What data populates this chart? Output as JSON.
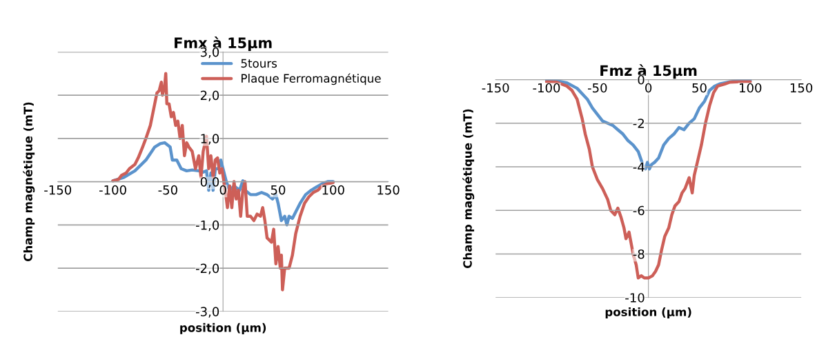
{
  "chart_data": [
    {
      "type": "line",
      "title": "Fmx à 15µm",
      "xlabel": "position (µm)",
      "ylabel": "Champ magnétique (mT)",
      "xlim": [
        -150,
        150
      ],
      "xticks": [
        -150,
        -100,
        -50,
        0,
        50,
        100,
        150
      ],
      "ylim": [
        -3,
        3
      ],
      "yticks": [
        {
          "value": -3,
          "label": "-3,0"
        },
        {
          "value": -2,
          "label": "-2,0"
        },
        {
          "value": -1,
          "label": "-1,0"
        },
        {
          "value": 0,
          "label": "0,0"
        },
        {
          "value": 1,
          "label": "1,0"
        },
        {
          "value": 2,
          "label": "2,0"
        },
        {
          "value": 3,
          "label": "3,0"
        }
      ],
      "grid": "y",
      "legend": "top right",
      "marker": "none",
      "line_style": "solid",
      "series": [
        {
          "name": "5tours",
          "color": "#5b93cc",
          "x": [
            -100,
            -90,
            -80,
            -70,
            -62,
            -57,
            -53,
            -48,
            -46,
            -42,
            -38,
            -33,
            -28,
            -22,
            -18,
            -15,
            -13,
            -11,
            -9,
            -7,
            -4,
            -2,
            0,
            3,
            6,
            10,
            15,
            18,
            20,
            25,
            30,
            35,
            40,
            45,
            48,
            50,
            53,
            56,
            58,
            60,
            63,
            66,
            70,
            75,
            80,
            85,
            90,
            95,
            100
          ],
          "values": [
            0.02,
            0.1,
            0.25,
            0.5,
            0.8,
            0.88,
            0.9,
            0.8,
            0.5,
            0.5,
            0.3,
            0.25,
            0.27,
            0.25,
            0.22,
            0.25,
            -0.2,
            0.2,
            -0.2,
            0.3,
            0.3,
            0.5,
            0.3,
            0,
            -0.2,
            -0.1,
            -0.2,
            0.02,
            -0.2,
            -0.3,
            -0.3,
            -0.25,
            -0.3,
            -0.4,
            -0.3,
            -0.5,
            -0.9,
            -0.8,
            -1.0,
            -0.8,
            -0.85,
            -0.7,
            -0.5,
            -0.3,
            -0.2,
            -0.12,
            -0.05,
            0,
            0
          ]
        },
        {
          "name": "Plaque Ferromagnétique",
          "color": "#cd5f58",
          "x": [
            -100,
            -95,
            -92,
            -88,
            -85,
            -80,
            -77,
            -73,
            -70,
            -66,
            -62,
            -60,
            -58,
            -56,
            -55,
            -53,
            -52,
            -51,
            -49,
            -47,
            -45,
            -43,
            -41,
            -39,
            -37,
            -35,
            -33,
            -31,
            -28,
            -25,
            -22,
            -20,
            -18,
            -15,
            -13,
            -11,
            -9,
            -7,
            -5,
            -3,
            -1,
            2,
            4,
            6,
            8,
            10,
            12,
            14,
            16,
            18,
            20,
            22,
            25,
            28,
            31,
            34,
            36,
            38,
            40,
            44,
            46,
            48,
            50,
            52,
            53,
            54,
            56,
            60,
            63,
            66,
            70,
            74,
            78,
            82,
            86,
            90,
            95,
            100
          ],
          "values": [
            0.02,
            0.05,
            0.15,
            0.2,
            0.3,
            0.4,
            0.55,
            0.8,
            1.0,
            1.3,
            1.8,
            2.05,
            2.1,
            2.3,
            2.0,
            2.2,
            2.5,
            1.8,
            1.8,
            1.5,
            1.6,
            1.3,
            1.4,
            1.0,
            1.3,
            0.6,
            0.9,
            0.8,
            0.7,
            0.3,
            0.6,
            0.1,
            0.7,
            1.05,
            0.3,
            0.6,
            0.1,
            0.5,
            0.55,
            0.2,
            0.3,
            -0.2,
            -0.6,
            -0.1,
            -0.6,
            0,
            -0.4,
            -0.2,
            -0.8,
            -0.2,
            0,
            -0.8,
            -0.8,
            -0.9,
            -0.75,
            -0.8,
            -0.6,
            -0.9,
            -1.3,
            -1.4,
            -1.1,
            -1.9,
            -1.5,
            -2.0,
            -1.7,
            -2.5,
            -2.0,
            -2.0,
            -1.7,
            -1.2,
            -0.8,
            -0.5,
            -0.35,
            -0.25,
            -0.2,
            -0.1,
            -0.05,
            -0.02
          ]
        }
      ]
    },
    {
      "type": "line",
      "title": "Fmz à 15µm",
      "xlabel": "position (µm)",
      "ylabel": "Champ magnétique (mT)",
      "xlim": [
        -150,
        150
      ],
      "xticks": [
        -150,
        -100,
        -50,
        0,
        50,
        100,
        150
      ],
      "ylim": [
        -10,
        0
      ],
      "yticks": [
        -10,
        -8,
        -6,
        -4,
        -2,
        0
      ],
      "grid": "y",
      "marker": "none",
      "line_style": "solid",
      "series": [
        {
          "color": "#5b93cc",
          "x": [
            -100,
            -90,
            -80,
            -70,
            -60,
            -55,
            -50,
            -45,
            -40,
            -35,
            -30,
            -25,
            -20,
            -15,
            -10,
            -7,
            -5,
            -3,
            -1,
            1,
            3,
            6,
            10,
            15,
            20,
            25,
            30,
            35,
            40,
            45,
            50,
            55,
            60,
            65,
            70,
            80,
            90,
            100
          ],
          "values": [
            -0.05,
            -0.06,
            -0.15,
            -0.4,
            -0.9,
            -1.3,
            -1.6,
            -1.9,
            -2.0,
            -2.1,
            -2.3,
            -2.5,
            -2.8,
            -3.0,
            -3.3,
            -3.7,
            -4.0,
            -4.1,
            -3.8,
            -4.1,
            -3.9,
            -3.8,
            -3.6,
            -3.0,
            -2.7,
            -2.5,
            -2.2,
            -2.3,
            -2.0,
            -1.8,
            -1.3,
            -1.0,
            -0.5,
            -0.3,
            -0.2,
            -0.1,
            -0.05,
            -0.05
          ]
        },
        {
          "color": "#cd5f58",
          "x": [
            -100,
            -90,
            -80,
            -75,
            -70,
            -65,
            -62,
            -58,
            -55,
            -50,
            -45,
            -40,
            -37,
            -33,
            -30,
            -27,
            -24,
            -22,
            -19,
            -17,
            -15,
            -12,
            -10,
            -7,
            -4,
            0,
            4,
            7,
            10,
            13,
            16,
            20,
            23,
            26,
            30,
            33,
            36,
            40,
            43,
            45,
            48,
            52,
            56,
            60,
            64,
            68,
            75,
            80,
            90,
            100
          ],
          "values": [
            -0.1,
            -0.12,
            -0.3,
            -0.5,
            -0.9,
            -1.8,
            -2.5,
            -3.2,
            -4.0,
            -4.6,
            -5.0,
            -5.5,
            -6.0,
            -6.2,
            -5.9,
            -6.3,
            -6.8,
            -7.3,
            -7.0,
            -7.5,
            -8.0,
            -8.5,
            -9.1,
            -9.0,
            -9.1,
            -9.1,
            -9.0,
            -8.8,
            -8.5,
            -7.8,
            -7.2,
            -6.8,
            -6.2,
            -5.8,
            -5.6,
            -5.2,
            -5.0,
            -4.5,
            -5.2,
            -4.4,
            -3.8,
            -3.0,
            -2.0,
            -1.2,
            -0.6,
            -0.3,
            -0.2,
            -0.12,
            -0.1,
            -0.1
          ]
        }
      ]
    }
  ]
}
